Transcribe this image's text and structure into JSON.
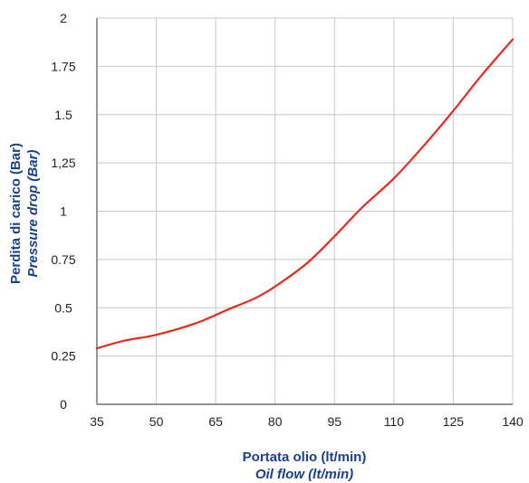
{
  "chart_data": {
    "type": "line",
    "x_axis": {
      "title": "Portata olio (lt/min)",
      "title_translation": "Oil flow (lt/min)",
      "range": [
        35,
        140
      ],
      "ticks": [
        35,
        50,
        65,
        80,
        95,
        110,
        125,
        140
      ],
      "tick_labels": [
        "35",
        "50",
        "65",
        "80",
        "95",
        "110",
        "125",
        "140"
      ]
    },
    "y_axis": {
      "title": "Perdita di carico (Bar)",
      "title_translation": "Pressure drop (Bar)",
      "range": [
        0,
        2
      ],
      "ticks": [
        0,
        0.25,
        0.5,
        0.75,
        1,
        1.25,
        1.5,
        1.75,
        2
      ],
      "tick_labels": [
        "0",
        "0.25",
        "0.5",
        "0.75",
        "1",
        "1,25",
        "1.5",
        "1.75",
        "2"
      ]
    },
    "grid": true,
    "series": [
      {
        "color": "#e8291c",
        "x": [
          35,
          42,
          50,
          60,
          68,
          75,
          80,
          88,
          95,
          102,
          110,
          118,
          125,
          132,
          140
        ],
        "y": [
          0.29,
          0.33,
          0.36,
          0.42,
          0.49,
          0.55,
          0.61,
          0.73,
          0.87,
          1.02,
          1.17,
          1.35,
          1.52,
          1.7,
          1.89
        ]
      }
    ],
    "colors": {
      "axis_title": "#1a3f8f",
      "grid": "#c8c8c8",
      "axis_line": "#555555"
    }
  }
}
